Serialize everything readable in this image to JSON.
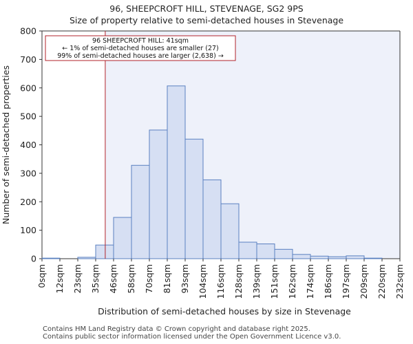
{
  "page": {
    "title_line1": "96, SHEEPCROFT HILL, STEVENAGE, SG2 9PS",
    "title_line2": "Size of property relative to semi-detached houses in Stevenage",
    "footer_line1": "Contains HM Land Registry data © Crown copyright and database right 2025.",
    "footer_line2": "Contains public sector information licensed under the Open Government Licence v3.0."
  },
  "chart_data": {
    "type": "bar",
    "title": "96, SHEEPCROFT HILL, STEVENAGE, SG2 9PS",
    "subtitle": "Size of property relative to semi-detached houses in Stevenage",
    "xlabel": "Distribution of semi-detached houses by size in Stevenage",
    "ylabel": "Number of semi-detached properties",
    "ylim": [
      0,
      800
    ],
    "yticks": [
      0,
      100,
      200,
      300,
      400,
      500,
      600,
      700,
      800
    ],
    "bin_edges_labels": [
      "0sqm",
      "12sqm",
      "23sqm",
      "35sqm",
      "46sqm",
      "58sqm",
      "70sqm",
      "81sqm",
      "93sqm",
      "104sqm",
      "116sqm",
      "128sqm",
      "139sqm",
      "151sqm",
      "162sqm",
      "174sqm",
      "186sqm",
      "197sqm",
      "209sqm",
      "220sqm",
      "232sqm"
    ],
    "values": [
      2,
      0,
      5,
      48,
      145,
      328,
      452,
      607,
      420,
      277,
      193,
      58,
      52,
      33,
      15,
      9,
      7,
      10,
      2,
      0
    ],
    "property_marker": {
      "value_sqm": 41,
      "label": "96 SHEEPCROFT HILL: 41sqm",
      "line2": "← 1% of semi-detached houses are smaller (27)",
      "line3": "99% of semi-detached houses are larger (2,638) →"
    },
    "colors": {
      "bar_fill": "#d6dff3",
      "bar_stroke": "#5a80c0",
      "marker": "#b0222a",
      "highlight_bg": "#eef1fa"
    }
  }
}
